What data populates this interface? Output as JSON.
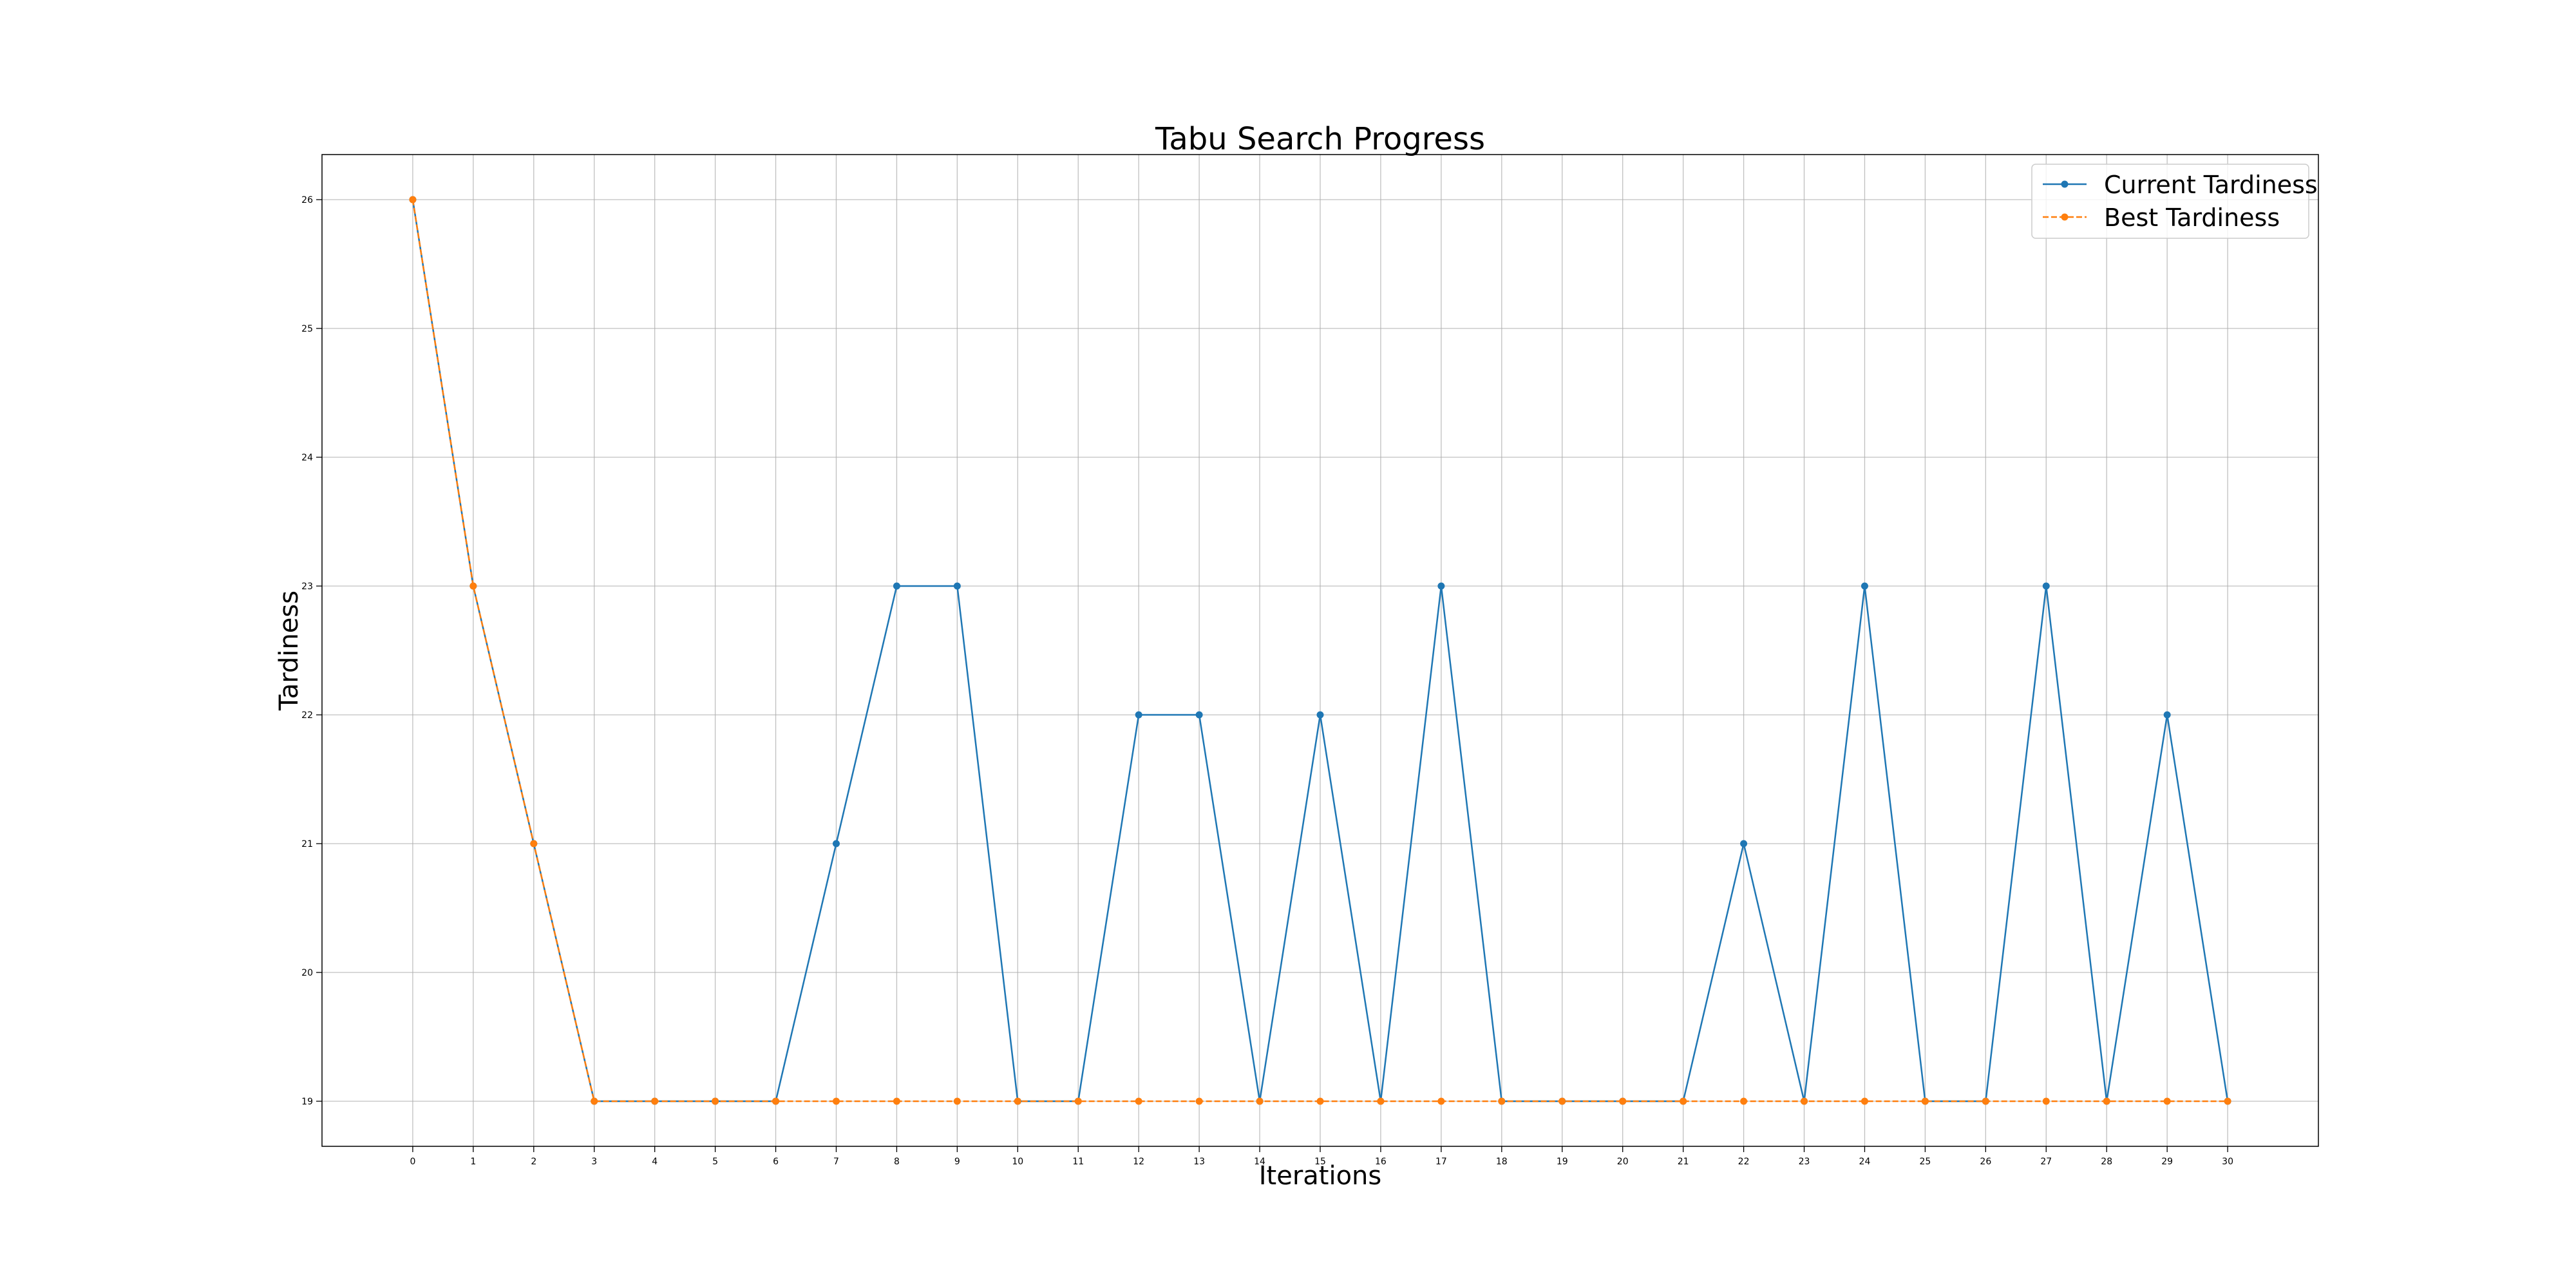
{
  "chart_data": {
    "type": "line",
    "title": "Tabu Search Progress",
    "xlabel": "Iterations",
    "ylabel": "Tardiness",
    "x": [
      0,
      1,
      2,
      3,
      4,
      5,
      6,
      7,
      8,
      9,
      10,
      11,
      12,
      13,
      14,
      15,
      16,
      17,
      18,
      19,
      20,
      21,
      22,
      23,
      24,
      25,
      26,
      27,
      28,
      29,
      30
    ],
    "xlim": [
      -1.5,
      31.5
    ],
    "ylim": [
      18.65,
      26.35
    ],
    "yticks": [
      19,
      20,
      21,
      22,
      23,
      24,
      25,
      26
    ],
    "grid": true,
    "legend_position": "top-right",
    "series": [
      {
        "name": "Current Tardiness",
        "color": "#1f77b4",
        "line_style": "solid",
        "marker": "circle",
        "values": [
          26,
          23,
          21,
          19,
          19,
          19,
          19,
          21,
          23,
          23,
          19,
          19,
          22,
          22,
          19,
          22,
          19,
          23,
          19,
          19,
          19,
          19,
          21,
          19,
          23,
          19,
          19,
          23,
          19,
          22,
          19
        ]
      },
      {
        "name": "Best Tardiness",
        "color": "#ff7f0e",
        "line_style": "dashed",
        "marker": "circle",
        "values": [
          26,
          23,
          21,
          19,
          19,
          19,
          19,
          19,
          19,
          19,
          19,
          19,
          19,
          19,
          19,
          19,
          19,
          19,
          19,
          19,
          19,
          19,
          19,
          19,
          19,
          19,
          19,
          19,
          19,
          19,
          19
        ]
      }
    ]
  }
}
